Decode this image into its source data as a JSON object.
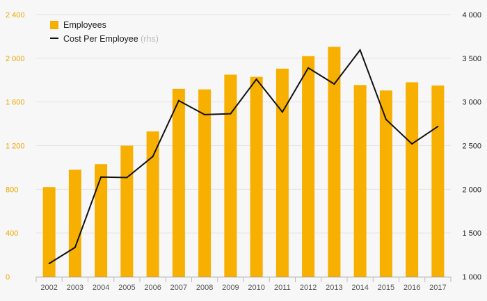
{
  "chart_data": {
    "type": "bar",
    "categories": [
      "2002",
      "2003",
      "2004",
      "2005",
      "2006",
      "2007",
      "2008",
      "2009",
      "2010",
      "2011",
      "2012",
      "2013",
      "2014",
      "2015",
      "2016",
      "2017"
    ],
    "series": [
      {
        "name": "Employees",
        "type": "bar",
        "axis": "left",
        "color": "#f8b000",
        "values": [
          820,
          980,
          1030,
          1200,
          1330,
          1720,
          1715,
          1850,
          1830,
          1905,
          2020,
          2105,
          1755,
          1705,
          1780,
          1750
        ]
      },
      {
        "name": "Cost Per Employee",
        "name_suffix": "(rhs)",
        "type": "line",
        "axis": "right",
        "color": "#111111",
        "values": [
          1150,
          1335,
          2140,
          2135,
          2375,
          3015,
          2855,
          2865,
          3260,
          2885,
          3390,
          3205,
          3595,
          2800,
          2520,
          2720
        ]
      }
    ],
    "yleft": {
      "lim": [
        0,
        2400
      ],
      "ticks": [
        0,
        400,
        800,
        1200,
        1600,
        2000,
        2400
      ],
      "tick_labels": [
        "0",
        "400",
        "800",
        "1 200",
        "1 600",
        "2 000",
        "2 400"
      ],
      "tick_color": "#f0a500"
    },
    "yright": {
      "lim": [
        1000,
        4000
      ],
      "ticks": [
        1000,
        1500,
        2000,
        2500,
        3000,
        3500,
        4000
      ],
      "tick_labels": [
        "1 000",
        "1 500",
        "2 000",
        "2 500",
        "3 000",
        "3 500",
        "4 000"
      ]
    },
    "grid": true,
    "legend_position": "top-left",
    "title": "",
    "xlabel": "",
    "ylabel": ""
  }
}
